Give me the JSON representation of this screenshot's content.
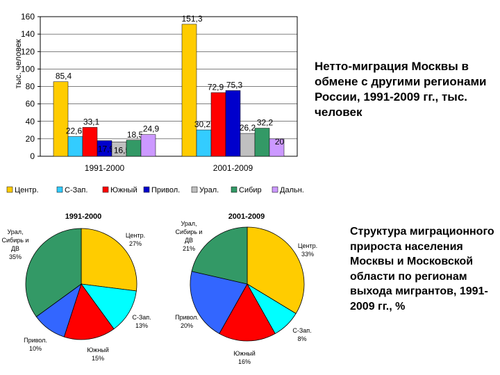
{
  "chart_data": [
    {
      "type": "bar",
      "ylabel": "тыс. человек",
      "ylim": [
        0,
        160
      ],
      "yticks": [
        0,
        20,
        40,
        60,
        80,
        100,
        120,
        140,
        160
      ],
      "grid": true,
      "categories": [
        "1991-2000",
        "2001-2009"
      ],
      "series": [
        {
          "name": "Центр.",
          "color": "#ffcc00",
          "values": [
            85.4,
            151.3
          ],
          "labels": [
            "85,4",
            "151,3"
          ]
        },
        {
          "name": "С-Зап.",
          "color": "#33ccff",
          "values": [
            22.6,
            30.2
          ],
          "labels": [
            "22,6",
            "30,2"
          ]
        },
        {
          "name": "Южный",
          "color": "#ff0000",
          "values": [
            33.1,
            72.9
          ],
          "labels": [
            "33,1",
            "72,9"
          ]
        },
        {
          "name": "Привол.",
          "color": "#0000cc",
          "values": [
            17.9,
            75.3
          ],
          "labels": [
            "17,9",
            "75,3"
          ]
        },
        {
          "name": "Урал.",
          "color": "#c0c0c0",
          "values": [
            16.5,
            26.2
          ],
          "labels": [
            "16,5",
            "26,2"
          ]
        },
        {
          "name": "Сибир",
          "color": "#339966",
          "values": [
            18.5,
            32.2
          ],
          "labels": [
            "18,5",
            "32,2"
          ]
        },
        {
          "name": "Дальн.",
          "color": "#cc99ff",
          "values": [
            24.9,
            20
          ],
          "labels": [
            "24,9",
            "20"
          ]
        }
      ],
      "legend_position": "bottom"
    },
    {
      "type": "pie",
      "title": "1991-2000",
      "slices": [
        {
          "label": "Центр.",
          "value": 27,
          "display": "27%",
          "color": "#ffcc00"
        },
        {
          "label": "С-Зап.",
          "value": 13,
          "display": "13%",
          "color": "#00ffff"
        },
        {
          "label": "Южный",
          "value": 15,
          "display": "15%",
          "color": "#ff0000"
        },
        {
          "label": "Привол.",
          "value": 10,
          "display": "10%",
          "color": "#3366ff"
        },
        {
          "label": "Урал, Сибирь и ДВ",
          "value": 35,
          "display": "35%",
          "color": "#339966"
        }
      ]
    },
    {
      "type": "pie",
      "title": "2001-2009",
      "slices": [
        {
          "label": "Центр.",
          "value": 33,
          "display": "33%",
          "color": "#ffcc00"
        },
        {
          "label": "С-Зап.",
          "value": 8,
          "display": "8%",
          "color": "#00ffff"
        },
        {
          "label": "Южный",
          "value": 16,
          "display": "16%",
          "color": "#ff0000"
        },
        {
          "label": "Привол.",
          "value": 20,
          "display": "20%",
          "color": "#3366ff"
        },
        {
          "label": "Урал, Сибирь и ДВ",
          "value": 21,
          "display": "21%",
          "color": "#339966"
        }
      ]
    }
  ],
  "captions": {
    "top": "Нетто-миграция Москвы в обмене с другими регионами России, 1991-2009 гг., тыс. человек",
    "bottom": "Структура миграционного прироста населения Москвы и Московской области по регионам выхода мигрантов, 1991-2009 гг., %"
  }
}
